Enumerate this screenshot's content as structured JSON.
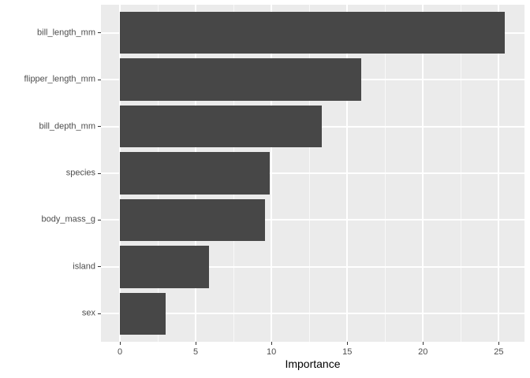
{
  "chart_data": {
    "type": "bar",
    "orientation": "horizontal",
    "title": "",
    "xlabel": "Importance",
    "ylabel": "",
    "categories": [
      "bill_length_mm",
      "flipper_length_mm",
      "bill_depth_mm",
      "species",
      "body_mass_g",
      "island",
      "sex"
    ],
    "values": [
      25.4,
      15.9,
      13.3,
      9.9,
      9.6,
      5.9,
      3.0
    ],
    "xlim": [
      -1.25,
      26.7
    ],
    "x_major_ticks": [
      0,
      5,
      10,
      15,
      20,
      25
    ],
    "x_tick_labels": [
      "0",
      "5",
      "10",
      "15",
      "20",
      "25"
    ],
    "x_minor_ticks": [
      2.5,
      7.5,
      12.5,
      17.5,
      22.5
    ],
    "grid": true,
    "legend": false,
    "bar_width_fraction": 0.9,
    "colors": {
      "bar_fill": "#474747",
      "panel_bg": "#EBEBEB",
      "grid_major": "#FFFFFF",
      "grid_minor": "#FFFFFF",
      "tick_label": "#4D4D4D",
      "axis_title": "#000000",
      "tick_mark": "#333333",
      "background": "#FFFFFF"
    }
  }
}
